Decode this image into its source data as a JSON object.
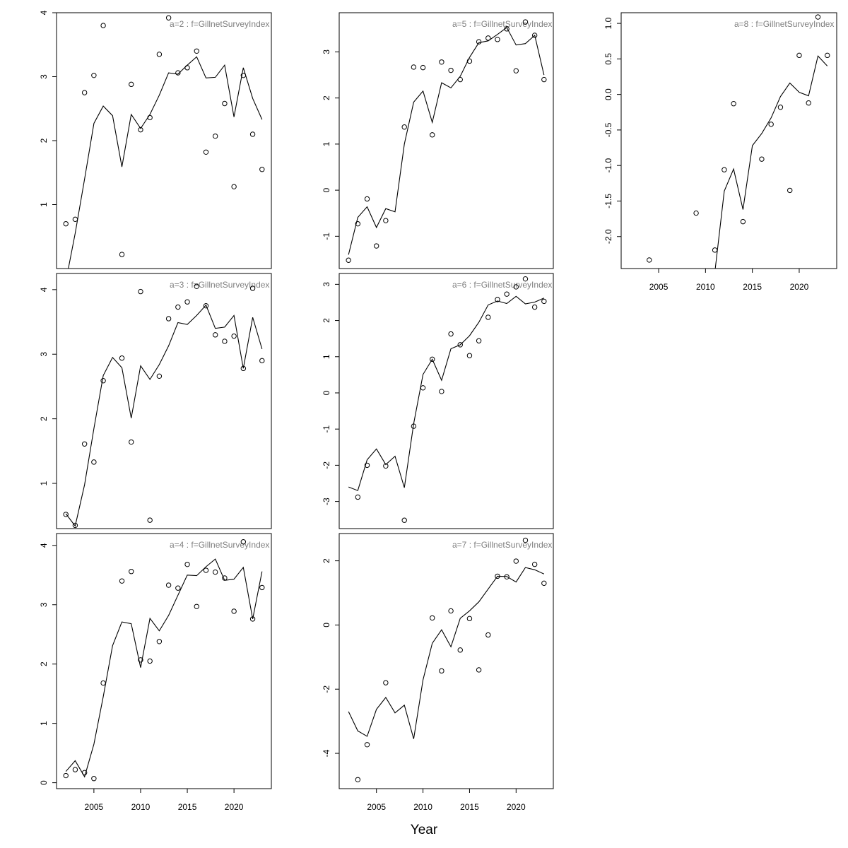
{
  "xlabel": "Year",
  "chart_data": [
    {
      "type": "line+scatter",
      "title": "a=2  :  f=GillnetSurveyIndex",
      "xlim": [
        2001,
        2024
      ],
      "ylim": [
        0,
        4
      ],
      "yticks": [
        1,
        2,
        3,
        4
      ],
      "xticks": [],
      "observed": {
        "x": [
          2002,
          2003,
          2004,
          2005,
          2006,
          2008,
          2009,
          2010,
          2011,
          2012,
          2013,
          2014,
          2015,
          2016,
          2017,
          2018,
          2019,
          2020,
          2021,
          2022,
          2023
        ],
        "y": [
          0.7,
          0.77,
          2.75,
          3.02,
          3.8,
          0.22,
          2.88,
          2.17,
          2.36,
          3.35,
          3.92,
          3.06,
          3.14,
          3.4,
          1.82,
          2.07,
          2.58,
          1.28,
          3.02,
          2.1,
          1.55
        ]
      },
      "fitted": {
        "x": [
          2002,
          2003,
          2004,
          2005,
          2006,
          2007,
          2008,
          2009,
          2010,
          2011,
          2012,
          2013,
          2014,
          2015,
          2016,
          2017,
          2018,
          2019,
          2020,
          2021,
          2022,
          2023
        ],
        "y": [
          -0.2,
          0.55,
          1.4,
          2.27,
          2.54,
          2.39,
          1.59,
          2.41,
          2.19,
          2.41,
          2.71,
          3.06,
          3.04,
          3.18,
          3.31,
          2.98,
          2.99,
          3.18,
          2.37,
          3.14,
          2.66,
          2.33
        ]
      }
    },
    {
      "type": "line+scatter",
      "title": "a=3  :  f=GillnetSurveyIndex",
      "xlim": [
        2001,
        2024
      ],
      "ylim": [
        0.3,
        4.25
      ],
      "yticks": [
        1,
        2,
        3,
        4
      ],
      "xticks": [],
      "observed": {
        "x": [
          2002,
          2003,
          2004,
          2005,
          2006,
          2008,
          2009,
          2010,
          2011,
          2012,
          2013,
          2014,
          2015,
          2016,
          2017,
          2018,
          2019,
          2020,
          2021,
          2022,
          2023
        ],
        "y": [
          0.52,
          0.35,
          1.61,
          1.33,
          2.59,
          2.94,
          1.64,
          3.97,
          0.43,
          2.66,
          3.55,
          3.73,
          3.81,
          4.05,
          3.75,
          3.3,
          3.2,
          3.28,
          2.78,
          4.02,
          2.9
        ]
      },
      "fitted": {
        "x": [
          2002,
          2003,
          2004,
          2005,
          2006,
          2007,
          2008,
          2009,
          2010,
          2011,
          2012,
          2013,
          2014,
          2015,
          2016,
          2017,
          2018,
          2019,
          2020,
          2021,
          2022,
          2023
        ],
        "y": [
          0.53,
          0.34,
          0.98,
          1.85,
          2.67,
          2.95,
          2.79,
          2.01,
          2.82,
          2.61,
          2.84,
          3.13,
          3.49,
          3.46,
          3.6,
          3.76,
          3.4,
          3.42,
          3.6,
          2.78,
          3.57,
          3.08
        ]
      }
    },
    {
      "type": "line+scatter",
      "title": "a=4  :  f=GillnetSurveyIndex",
      "xlim": [
        2001,
        2024
      ],
      "ylim": [
        -0.1,
        4.2
      ],
      "yticks": [
        0,
        1,
        2,
        3,
        4
      ],
      "xticks": [
        2005,
        2010,
        2015,
        2020
      ],
      "observed": {
        "x": [
          2002,
          2003,
          2004,
          2005,
          2006,
          2008,
          2009,
          2010,
          2011,
          2012,
          2013,
          2014,
          2015,
          2016,
          2017,
          2018,
          2019,
          2020,
          2021,
          2022,
          2023
        ],
        "y": [
          0.12,
          0.22,
          0.17,
          0.07,
          1.68,
          3.4,
          3.56,
          2.07,
          2.05,
          2.38,
          3.33,
          3.28,
          3.68,
          2.97,
          3.58,
          3.55,
          3.45,
          2.89,
          4.06,
          2.76,
          3.29
        ]
      },
      "fitted": {
        "x": [
          2002,
          2003,
          2004,
          2005,
          2006,
          2007,
          2008,
          2009,
          2010,
          2011,
          2012,
          2013,
          2014,
          2015,
          2016,
          2017,
          2018,
          2019,
          2020,
          2021,
          2022,
          2023
        ],
        "y": [
          0.19,
          0.37,
          0.1,
          0.65,
          1.45,
          2.31,
          2.71,
          2.68,
          1.94,
          2.77,
          2.56,
          2.82,
          3.16,
          3.5,
          3.49,
          3.64,
          3.77,
          3.41,
          3.43,
          3.63,
          2.76,
          3.56
        ]
      }
    },
    {
      "type": "line+scatter",
      "title": "a=5  :  f=GillnetSurveyIndex",
      "xlim": [
        2001,
        2024
      ],
      "ylim": [
        -1.7,
        3.85
      ],
      "yticks": [
        -1,
        0,
        1,
        2,
        3
      ],
      "xticks": [],
      "observed": {
        "x": [
          2002,
          2003,
          2004,
          2005,
          2006,
          2008,
          2009,
          2010,
          2011,
          2012,
          2013,
          2014,
          2015,
          2016,
          2017,
          2018,
          2019,
          2020,
          2021,
          2022,
          2023
        ],
        "y": [
          -1.52,
          -0.73,
          -0.19,
          -1.21,
          -0.66,
          1.37,
          2.67,
          2.66,
          1.2,
          2.78,
          2.6,
          2.4,
          2.8,
          3.22,
          3.3,
          3.27,
          3.5,
          2.59,
          3.65,
          3.36,
          2.4
        ]
      },
      "fitted": {
        "x": [
          2002,
          2003,
          2004,
          2005,
          2006,
          2007,
          2008,
          2009,
          2010,
          2011,
          2012,
          2013,
          2014,
          2015,
          2016,
          2017,
          2018,
          2019,
          2020,
          2021,
          2022,
          2023
        ],
        "y": [
          -1.4,
          -0.59,
          -0.36,
          -0.81,
          -0.4,
          -0.47,
          1.0,
          1.91,
          2.15,
          1.47,
          2.33,
          2.22,
          2.47,
          2.88,
          3.2,
          3.24,
          3.38,
          3.53,
          3.15,
          3.18,
          3.36,
          2.5
        ]
      }
    },
    {
      "type": "line+scatter",
      "title": "a=6  :  f=GillnetSurveyIndex",
      "xlim": [
        2001,
        2024
      ],
      "ylim": [
        -3.75,
        3.3
      ],
      "yticks": [
        -3,
        -2,
        -1,
        0,
        1,
        2,
        3
      ],
      "xticks": [],
      "observed": {
        "x": [
          2003,
          2004,
          2006,
          2008,
          2009,
          2010,
          2011,
          2012,
          2013,
          2014,
          2015,
          2016,
          2017,
          2018,
          2019,
          2020,
          2021,
          2022,
          2023
        ],
        "y": [
          -2.88,
          -2.0,
          -2.02,
          -3.52,
          -0.92,
          0.14,
          0.93,
          0.04,
          1.63,
          1.33,
          1.03,
          1.44,
          2.09,
          2.58,
          2.73,
          2.93,
          3.15,
          2.37,
          2.53
        ]
      },
      "fitted": {
        "x": [
          2002,
          2003,
          2004,
          2005,
          2006,
          2007,
          2008,
          2009,
          2010,
          2011,
          2012,
          2013,
          2014,
          2015,
          2016,
          2017,
          2018,
          2019,
          2020,
          2021,
          2022,
          2023
        ],
        "y": [
          -2.6,
          -2.7,
          -1.85,
          -1.55,
          -1.98,
          -1.75,
          -2.62,
          -0.85,
          0.51,
          0.93,
          0.35,
          1.22,
          1.33,
          1.58,
          1.95,
          2.43,
          2.54,
          2.47,
          2.67,
          2.46,
          2.51,
          2.62
        ]
      }
    },
    {
      "type": "line+scatter",
      "title": "a=7  :  f=GillnetSurveyIndex",
      "xlim": [
        2001,
        2024
      ],
      "ylim": [
        -5.1,
        2.85
      ],
      "yticks": [
        -4,
        -2,
        0,
        2
      ],
      "xticks": [
        2005,
        2010,
        2015,
        2020
      ],
      "observed": {
        "x": [
          2003,
          2004,
          2006,
          2011,
          2012,
          2013,
          2014,
          2015,
          2016,
          2017,
          2018,
          2019,
          2020,
          2021,
          2022,
          2023
        ],
        "y": [
          -4.82,
          -3.73,
          -1.8,
          0.22,
          -1.43,
          0.44,
          -0.78,
          0.2,
          -1.4,
          -0.31,
          1.52,
          1.5,
          1.99,
          2.64,
          1.89,
          1.3
        ]
      },
      "fitted": {
        "x": [
          2002,
          2003,
          2004,
          2005,
          2006,
          2007,
          2008,
          2009,
          2010,
          2011,
          2012,
          2013,
          2014,
          2015,
          2016,
          2017,
          2018,
          2019,
          2020,
          2021,
          2022,
          2023
        ],
        "y": [
          -2.7,
          -3.3,
          -3.47,
          -2.63,
          -2.26,
          -2.74,
          -2.5,
          -3.55,
          -1.71,
          -0.57,
          -0.15,
          -0.68,
          0.21,
          0.44,
          0.72,
          1.12,
          1.52,
          1.51,
          1.34,
          1.79,
          1.72,
          1.59
        ]
      }
    },
    {
      "type": "line+scatter",
      "title": "a=8  :  f=GillnetSurveyIndex",
      "xlim": [
        2001,
        2024
      ],
      "ylim": [
        -2.45,
        1.15
      ],
      "yticks": [
        -2.0,
        -1.5,
        -1.0,
        -0.5,
        0.0,
        0.5,
        1.0
      ],
      "ytick_labels": [
        "-2.0",
        "-1.5",
        "-1.0",
        "-0.5",
        "0.0",
        "0.5",
        "1.0"
      ],
      "xticks": [
        2005,
        2010,
        2015,
        2020
      ],
      "observed": {
        "x": [
          2004,
          2009,
          2011,
          2012,
          2013,
          2014,
          2016,
          2017,
          2018,
          2019,
          2020,
          2021,
          2022,
          2023
        ],
        "y": [
          -2.33,
          -1.67,
          -2.19,
          -1.06,
          -0.13,
          -1.79,
          -0.91,
          -0.42,
          -0.18,
          -1.35,
          0.55,
          -0.12,
          1.09,
          0.55
        ]
      },
      "fitted": {
        "x": [
          2011,
          2012,
          2013,
          2014,
          2015,
          2016,
          2017,
          2018,
          2019,
          2020,
          2021,
          2022,
          2023
        ],
        "y": [
          -2.5,
          -1.36,
          -1.05,
          -1.62,
          -0.72,
          -0.55,
          -0.33,
          -0.03,
          0.16,
          0.03,
          -0.02,
          0.54,
          0.4
        ]
      }
    }
  ]
}
